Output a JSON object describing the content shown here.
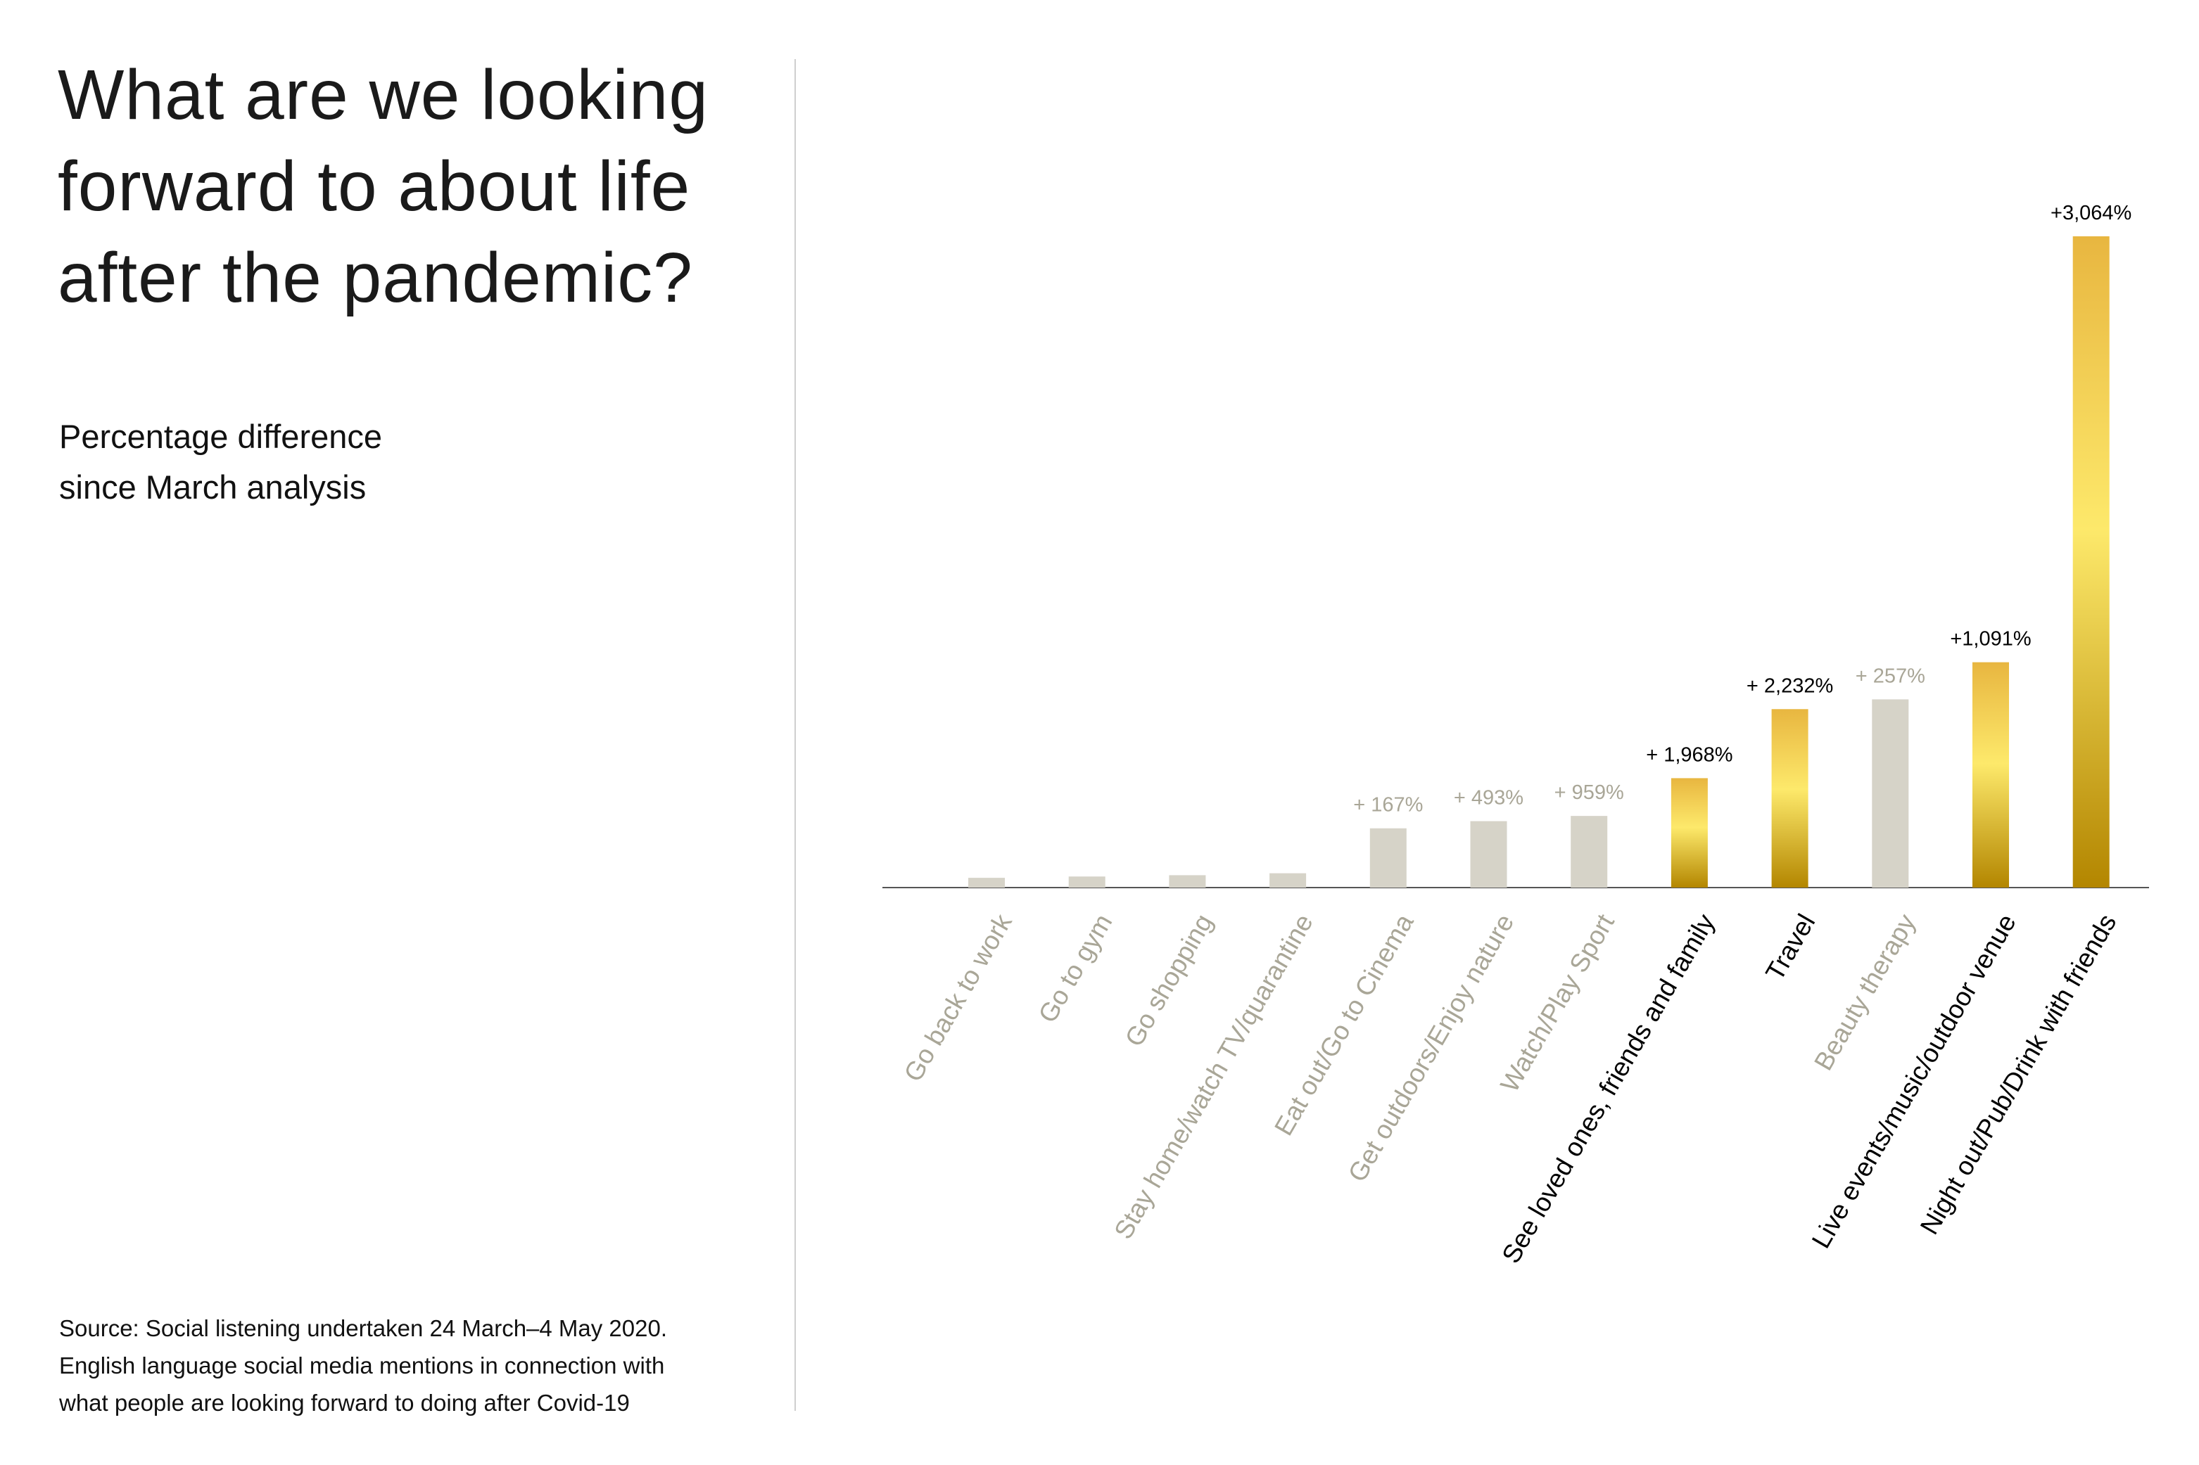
{
  "title": "What are we looking forward to about life after the pandemic?",
  "subtitle": [
    "Percentage difference",
    "since March analysis"
  ],
  "source": [
    "Source: Social listening undertaken 24 March–4 May 2020.",
    "English language social media mentions in connection with",
    "what people are looking forward to doing after Covid-19"
  ],
  "colors": {
    "grey_bar": "#d6d3c8",
    "grey_text": "#a9a697",
    "highlight_text": "#000000",
    "gold_top": "#e8b640",
    "gold_mid": "#fde96b",
    "gold_bottom": "#b38600"
  },
  "chart_data": {
    "type": "bar",
    "title": "",
    "xlabel": "",
    "ylabel": "",
    "grid": false,
    "categories": [
      "Go back to work",
      "Go to gym",
      "Go shopping",
      "Stay home/watch TV/quarantine",
      "Eat out/Go to Cinema",
      "Get outdoors/Enjoy nature",
      "Watch/Play Sport",
      "See loved ones, friends and family",
      "Travel",
      "Beauty therapy",
      "Live events/music/outdoor venue",
      "Night out/Pub/Drink with friends"
    ],
    "data_labels": [
      "",
      "",
      "",
      "",
      "+ 167%",
      "+ 493%",
      "+ 959%",
      "+ 1,968%",
      "+ 2,232%",
      "+ 257%",
      "+1,091%",
      "+3,064%"
    ],
    "values": [
      null,
      null,
      null,
      null,
      167,
      493,
      959,
      1968,
      2232,
      257,
      1091,
      3064
    ],
    "relative_bar_height_percent": [
      1.5,
      1.7,
      1.9,
      2.2,
      9.1,
      10.2,
      11.0,
      16.8,
      27.4,
      28.9,
      34.6,
      100
    ],
    "highlighted": [
      false,
      false,
      false,
      false,
      false,
      false,
      false,
      true,
      true,
      false,
      true,
      true
    ]
  }
}
